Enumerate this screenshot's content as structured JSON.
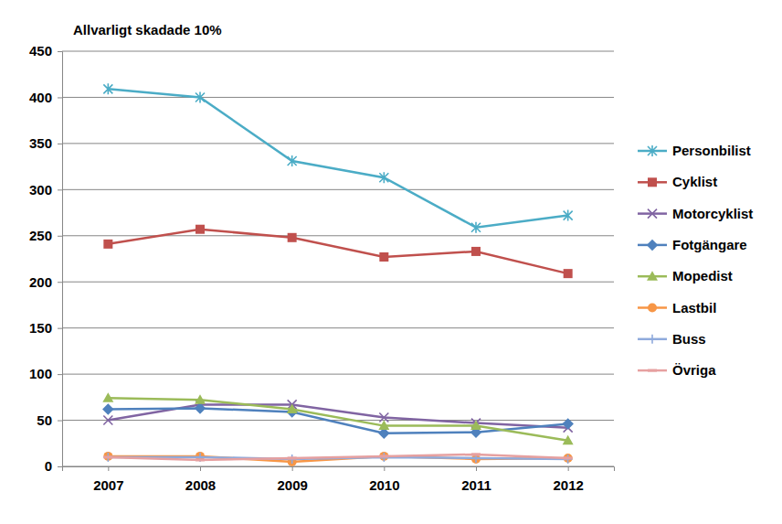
{
  "chart_data": {
    "type": "line",
    "title": "Allvarligt skadade 10%",
    "categories": [
      "2007",
      "2008",
      "2009",
      "2010",
      "2011",
      "2012"
    ],
    "series": [
      {
        "name": "Personbilist",
        "color": "#4bacc6",
        "marker": "asterisk",
        "values": [
          409,
          400,
          331,
          313,
          259,
          272
        ]
      },
      {
        "name": "Cyklist",
        "color": "#c0504d",
        "marker": "square",
        "values": [
          241,
          257,
          248,
          227,
          233,
          209
        ]
      },
      {
        "name": "Motorcyklist",
        "color": "#8064a2",
        "marker": "x",
        "values": [
          50,
          67,
          67,
          53,
          47,
          42
        ]
      },
      {
        "name": "Fotgängare",
        "color": "#4f81bd",
        "marker": "diamond",
        "values": [
          62,
          63,
          59,
          36,
          37,
          46
        ]
      },
      {
        "name": "Mopedist",
        "color": "#9bbb59",
        "marker": "triangle",
        "values": [
          74,
          72,
          62,
          44,
          44,
          28
        ]
      },
      {
        "name": "Lastbil",
        "color": "#f79646",
        "marker": "circle",
        "values": [
          11,
          11,
          5,
          11,
          8,
          9
        ]
      },
      {
        "name": "Buss",
        "color": "#8faadc",
        "marker": "plus",
        "values": [
          10,
          10,
          8,
          10,
          9,
          8
        ]
      },
      {
        "name": "Övriga",
        "color": "#e6a0a0",
        "marker": "dash",
        "values": [
          10,
          7,
          9,
          11,
          13,
          9
        ]
      }
    ],
    "ylim": [
      0,
      450
    ],
    "yticks": [
      0,
      50,
      100,
      150,
      200,
      250,
      300,
      350,
      400,
      450
    ],
    "grid": true,
    "legend": "right"
  }
}
